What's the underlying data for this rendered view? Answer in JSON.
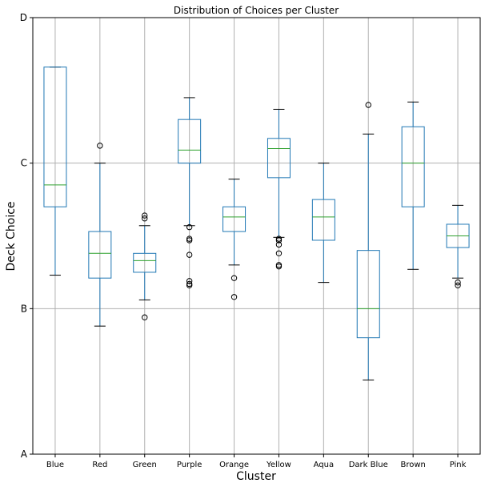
{
  "chart_data": {
    "type": "boxplot",
    "title": "Distribution of Choices per Cluster",
    "xlabel": "Cluster",
    "ylabel": "Deck Choice",
    "ylim": [
      0,
      3
    ],
    "yticks": [
      {
        "value": 0,
        "label": "A"
      },
      {
        "value": 1,
        "label": "B"
      },
      {
        "value": 2,
        "label": "C"
      },
      {
        "value": 3,
        "label": "D"
      }
    ],
    "grid": true,
    "colors": {
      "box": "#1f77b4",
      "median": "#2ca02c",
      "whisker": "#1f77b4",
      "cap": "#000000",
      "flier": "#000000",
      "grid": "#b0b0b0"
    },
    "categories": [
      "Blue",
      "Red",
      "Green",
      "Purple",
      "Orange",
      "Yellow",
      "Aqua",
      "Dark Blue",
      "Brown",
      "Pink"
    ],
    "boxes": [
      {
        "category": "Blue",
        "whislo": 1.23,
        "q1": 1.7,
        "med": 1.85,
        "q3": 2.66,
        "whishi": 2.66,
        "fliers": []
      },
      {
        "category": "Red",
        "whislo": 0.88,
        "q1": 1.21,
        "med": 1.38,
        "q3": 1.53,
        "whishi": 2.0,
        "fliers": [
          2.12
        ]
      },
      {
        "category": "Green",
        "whislo": 1.06,
        "q1": 1.25,
        "med": 1.33,
        "q3": 1.38,
        "whishi": 1.57,
        "fliers": [
          0.94,
          1.62,
          1.64
        ]
      },
      {
        "category": "Purple",
        "whislo": 1.57,
        "q1": 2.0,
        "med": 2.09,
        "q3": 2.3,
        "whishi": 2.45,
        "fliers": [
          1.56,
          1.48,
          1.47,
          1.37,
          1.19,
          1.17,
          1.16
        ]
      },
      {
        "category": "Orange",
        "whislo": 1.3,
        "q1": 1.53,
        "med": 1.63,
        "q3": 1.7,
        "whishi": 1.89,
        "fliers": [
          1.21,
          1.08
        ]
      },
      {
        "category": "Yellow",
        "whislo": 1.49,
        "q1": 1.9,
        "med": 2.1,
        "q3": 2.17,
        "whishi": 2.37,
        "fliers": [
          1.48,
          1.47,
          1.44,
          1.38,
          1.3,
          1.29
        ]
      },
      {
        "category": "Aqua",
        "whislo": 1.18,
        "q1": 1.47,
        "med": 1.63,
        "q3": 1.75,
        "whishi": 2.0,
        "fliers": []
      },
      {
        "category": "Dark Blue",
        "whislo": 0.51,
        "q1": 0.8,
        "med": 1.0,
        "q3": 1.4,
        "whishi": 2.2,
        "fliers": [
          2.4
        ]
      },
      {
        "category": "Brown",
        "whislo": 1.27,
        "q1": 1.7,
        "med": 2.0,
        "q3": 2.25,
        "whishi": 2.42,
        "fliers": []
      },
      {
        "category": "Pink",
        "whislo": 1.21,
        "q1": 1.42,
        "med": 1.5,
        "q3": 1.58,
        "whishi": 1.71,
        "fliers": [
          1.18,
          1.16
        ]
      }
    ]
  }
}
